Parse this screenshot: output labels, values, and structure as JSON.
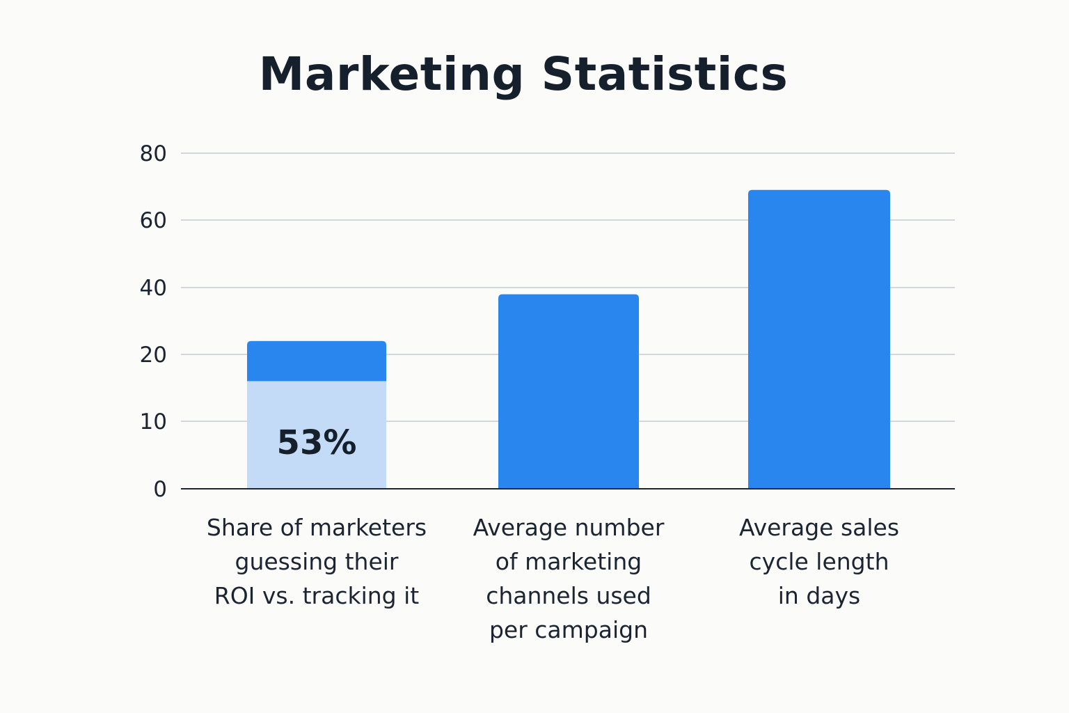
{
  "chart_data": {
    "type": "bar",
    "title": "Marketing Statistics",
    "categories": [
      [
        "Share of marketers",
        "guessing their",
        "ROI vs. tracking it"
      ],
      [
        "Average number",
        "of marketing",
        "channels used",
        "per campaign"
      ],
      [
        "Average sales",
        "cycle length",
        "in days"
      ]
    ],
    "values": [
      24,
      38,
      69
    ],
    "highlight": {
      "category_index": 0,
      "value": 16,
      "label": "53%"
    },
    "y_ticks": [
      0,
      10,
      20,
      40,
      60,
      80
    ],
    "grid": true,
    "colors": {
      "bar": "#2a86ef",
      "highlight": "#c3dbf7",
      "grid": "#d3d7de",
      "axis": "#1b2430"
    }
  }
}
